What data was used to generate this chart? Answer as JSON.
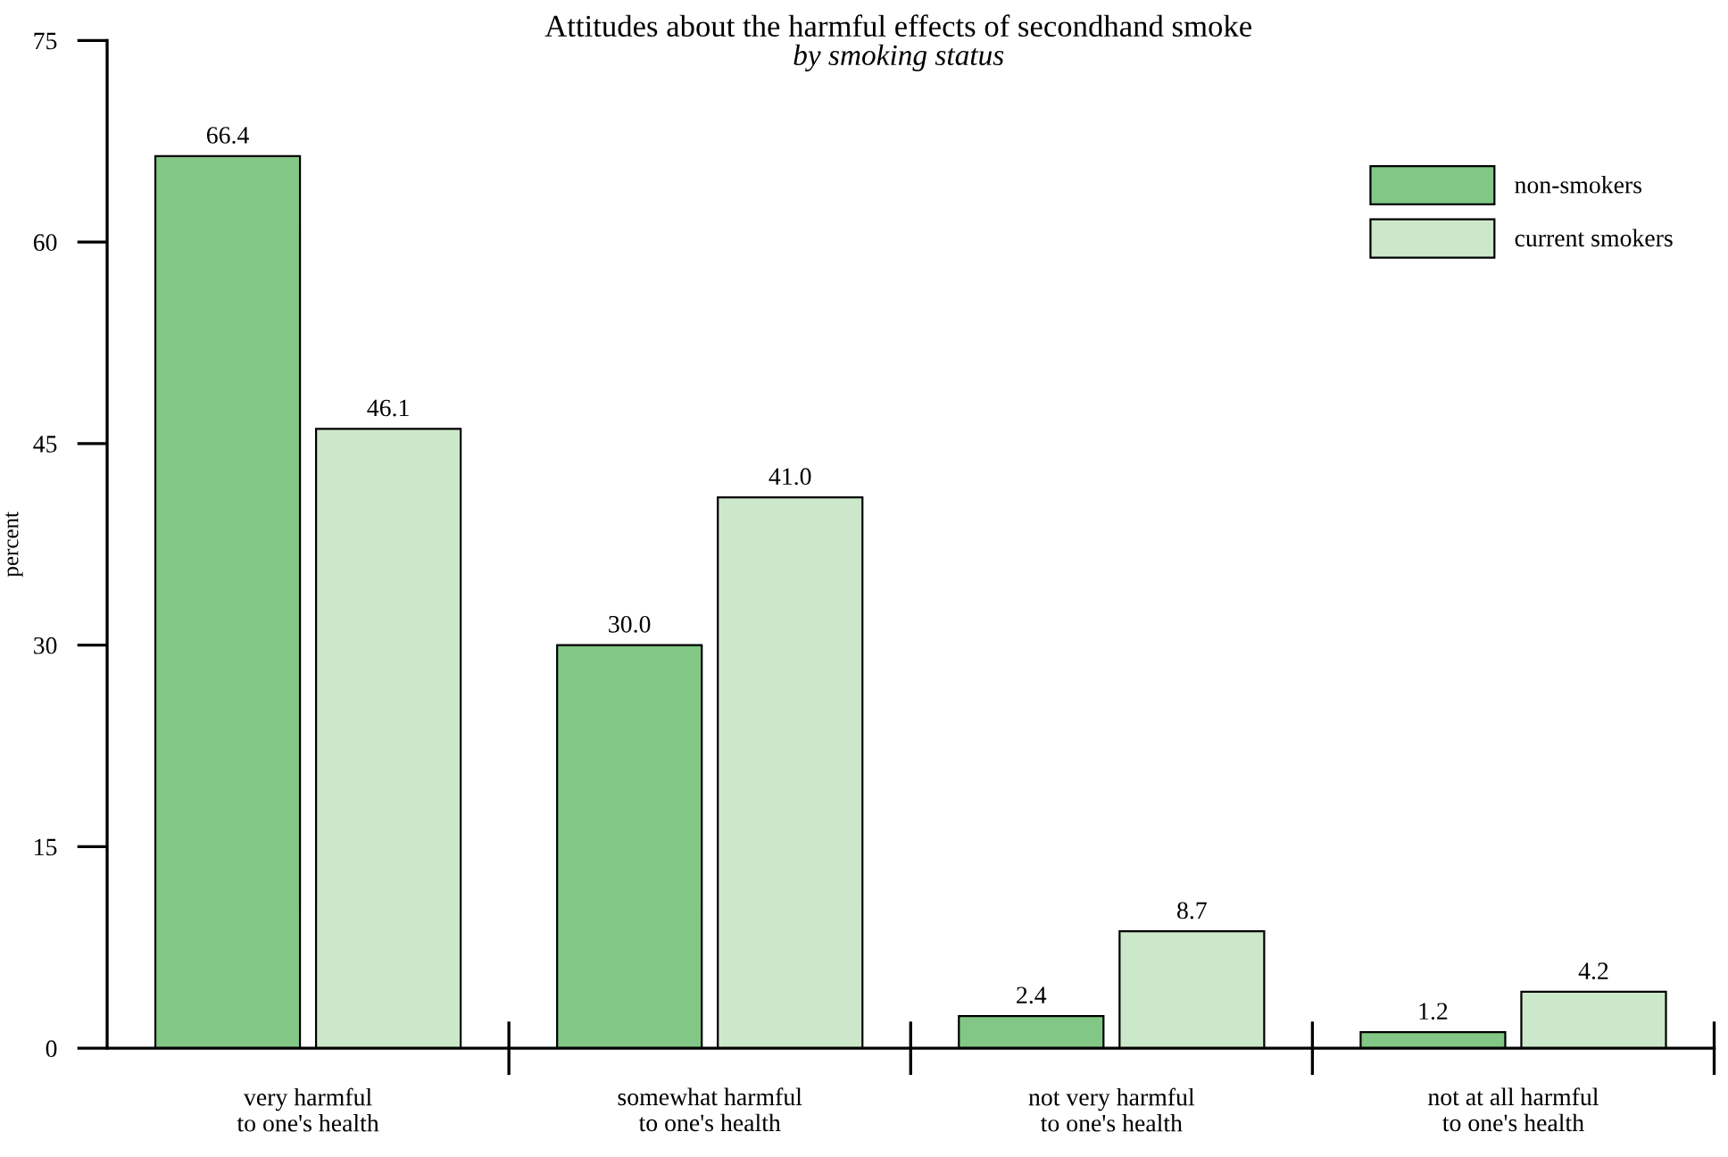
{
  "chart_data": {
    "type": "bar",
    "title": "Attitudes about the harmful effects of secondhand smoke",
    "subtitle": "by smoking status",
    "ylabel": "percent",
    "categories": [
      "very harmful\nto one's health",
      "somewhat harmful\nto one's health",
      "not very harmful\nto one's health",
      "not at all harmful\nto one's health"
    ],
    "series": [
      {
        "name": "non-smokers",
        "color": "#82c785",
        "values": [
          66.4,
          30.0,
          2.4,
          1.2
        ],
        "value_labels": [
          "66.4",
          "30.0",
          "2.4",
          "1.2"
        ]
      },
      {
        "name": "current smokers",
        "color": "#cce8cb",
        "values": [
          46.1,
          41.0,
          8.7,
          4.2
        ],
        "value_labels": [
          "46.1",
          "41.0",
          "8.7",
          "4.2"
        ]
      }
    ],
    "ylim": [
      0,
      75
    ],
    "yticks": [
      0,
      15,
      30,
      45,
      60,
      75
    ],
    "grid": false,
    "legend": "top right"
  }
}
